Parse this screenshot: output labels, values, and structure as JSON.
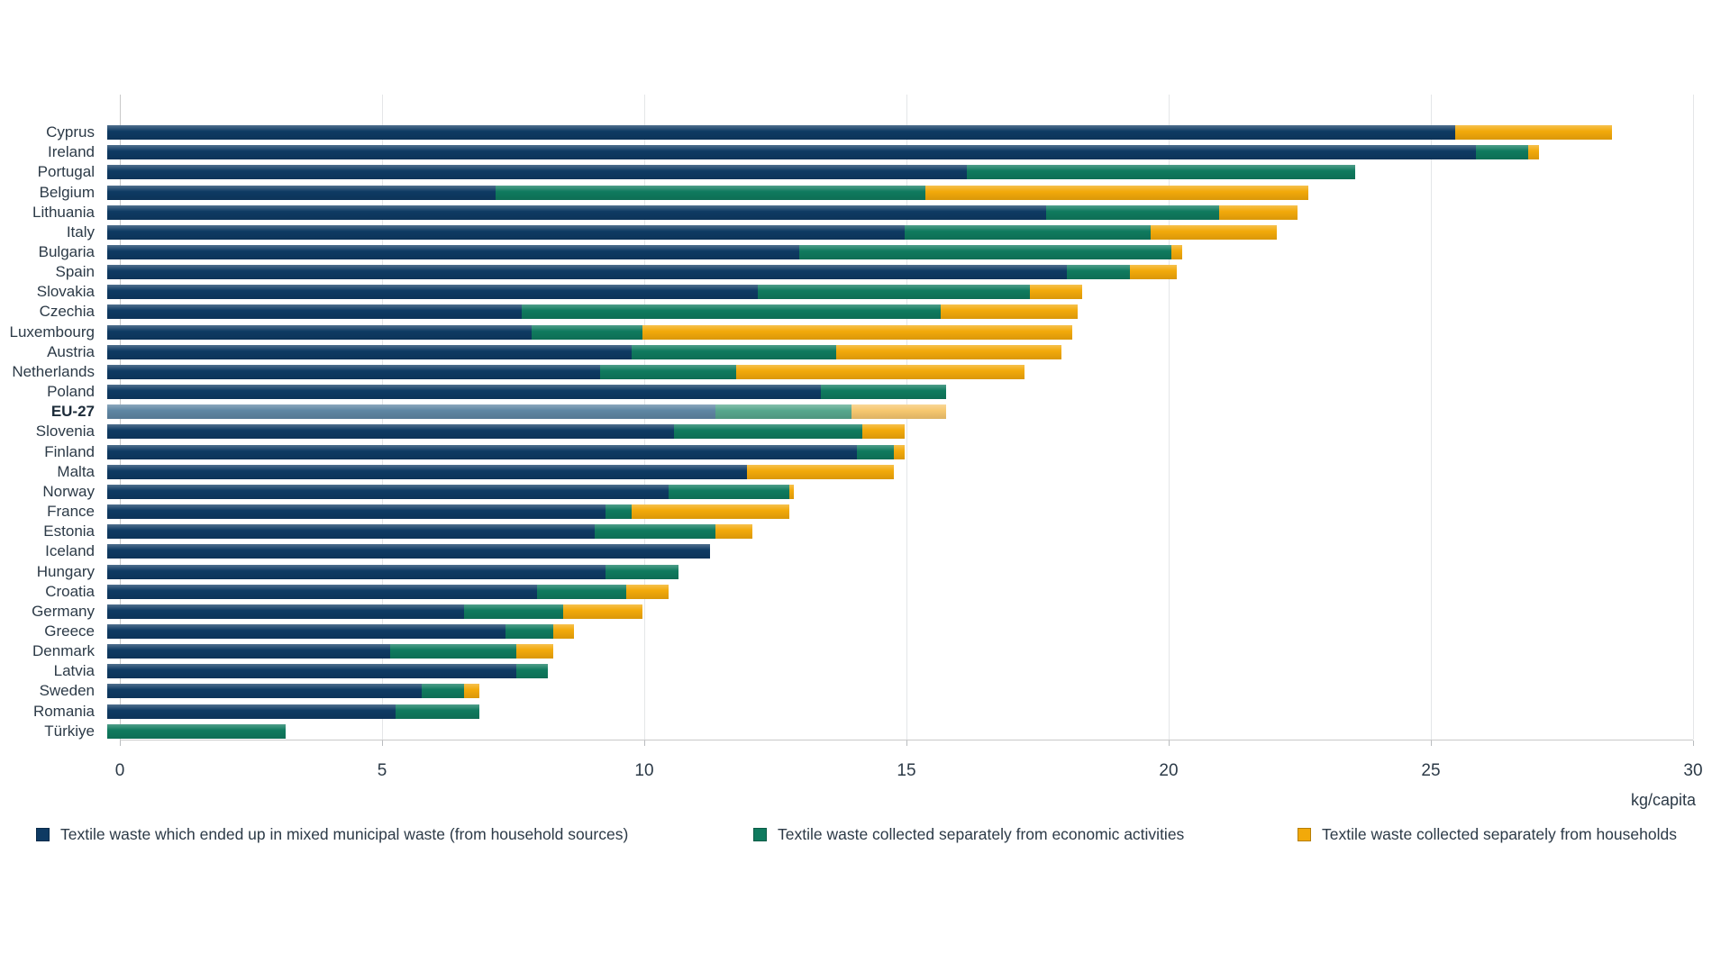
{
  "chart_data": {
    "type": "bar",
    "orientation": "horizontal",
    "title": "",
    "xlabel": "kg/capita",
    "xlim": [
      0,
      30
    ],
    "x_ticks": [
      0,
      5,
      10,
      15,
      20,
      25,
      30
    ],
    "grid": true,
    "legend_position": "bottom",
    "series": [
      {
        "name": "Textile waste which ended up in mixed municipal waste (from household sources)",
        "color": "#0e3a63",
        "muted_color": "#5f86a3"
      },
      {
        "name": "Textile waste collected separately from economic activities",
        "color": "#0f7a5e",
        "muted_color": "#57a78d"
      },
      {
        "name": "Textile waste collected separately from households",
        "color": "#f2a90a",
        "muted_color": "#f6c76f"
      }
    ],
    "rows": [
      {
        "label": "Cyprus",
        "values": [
          25.7,
          0.0,
          3.0
        ]
      },
      {
        "label": "Ireland",
        "values": [
          26.1,
          1.0,
          0.2
        ]
      },
      {
        "label": "Portugal",
        "values": [
          16.4,
          7.4,
          0.0
        ]
      },
      {
        "label": "Belgium",
        "values": [
          7.4,
          8.2,
          7.3
        ]
      },
      {
        "label": "Lithuania",
        "values": [
          17.9,
          3.3,
          1.5
        ]
      },
      {
        "label": "Italy",
        "values": [
          15.2,
          4.7,
          2.4
        ]
      },
      {
        "label": "Bulgaria",
        "values": [
          13.2,
          7.1,
          0.2
        ]
      },
      {
        "label": "Spain",
        "values": [
          18.3,
          1.2,
          0.9
        ]
      },
      {
        "label": "Slovakia",
        "values": [
          12.4,
          5.2,
          1.0
        ]
      },
      {
        "label": "Czechia",
        "values": [
          7.9,
          8.0,
          2.6
        ]
      },
      {
        "label": "Luxembourg",
        "values": [
          8.1,
          2.1,
          8.2
        ]
      },
      {
        "label": "Austria",
        "values": [
          10.0,
          3.9,
          4.3
        ]
      },
      {
        "label": "Netherlands",
        "values": [
          9.4,
          2.6,
          5.5
        ]
      },
      {
        "label": "Poland",
        "values": [
          13.6,
          2.4,
          0.0
        ]
      },
      {
        "label": "EU-27",
        "values": [
          11.6,
          2.6,
          1.8
        ],
        "highlight": true
      },
      {
        "label": "Slovenia",
        "values": [
          10.8,
          3.6,
          0.8
        ]
      },
      {
        "label": "Finland",
        "values": [
          14.3,
          0.7,
          0.2
        ]
      },
      {
        "label": "Malta",
        "values": [
          12.2,
          0.0,
          2.8
        ]
      },
      {
        "label": "Norway",
        "values": [
          10.7,
          2.3,
          0.1
        ]
      },
      {
        "label": "France",
        "values": [
          9.5,
          0.5,
          3.0
        ]
      },
      {
        "label": "Estonia",
        "values": [
          9.3,
          2.3,
          0.7
        ]
      },
      {
        "label": "Iceland",
        "values": [
          11.5,
          0.0,
          0.0
        ]
      },
      {
        "label": "Hungary",
        "values": [
          9.5,
          1.4,
          0.0
        ]
      },
      {
        "label": "Croatia",
        "values": [
          8.2,
          1.7,
          0.8
        ]
      },
      {
        "label": "Germany",
        "values": [
          6.8,
          1.9,
          1.5
        ]
      },
      {
        "label": "Greece",
        "values": [
          7.6,
          0.9,
          0.4
        ]
      },
      {
        "label": "Denmark",
        "values": [
          5.4,
          2.4,
          0.7
        ]
      },
      {
        "label": "Latvia",
        "values": [
          7.8,
          0.6,
          0.0
        ]
      },
      {
        "label": "Sweden",
        "values": [
          6.0,
          0.8,
          0.3
        ]
      },
      {
        "label": "Romania",
        "values": [
          5.5,
          1.6,
          0.0
        ]
      },
      {
        "label": "Türkiye",
        "values": [
          0.0,
          3.4,
          0.0
        ]
      }
    ]
  },
  "axis": {
    "unit_label": "kg/capita"
  },
  "colors": {
    "grid": "#e4e6e8",
    "axis": "#c9c9c9",
    "text": "#2c3a47",
    "background": "#ffffff"
  }
}
